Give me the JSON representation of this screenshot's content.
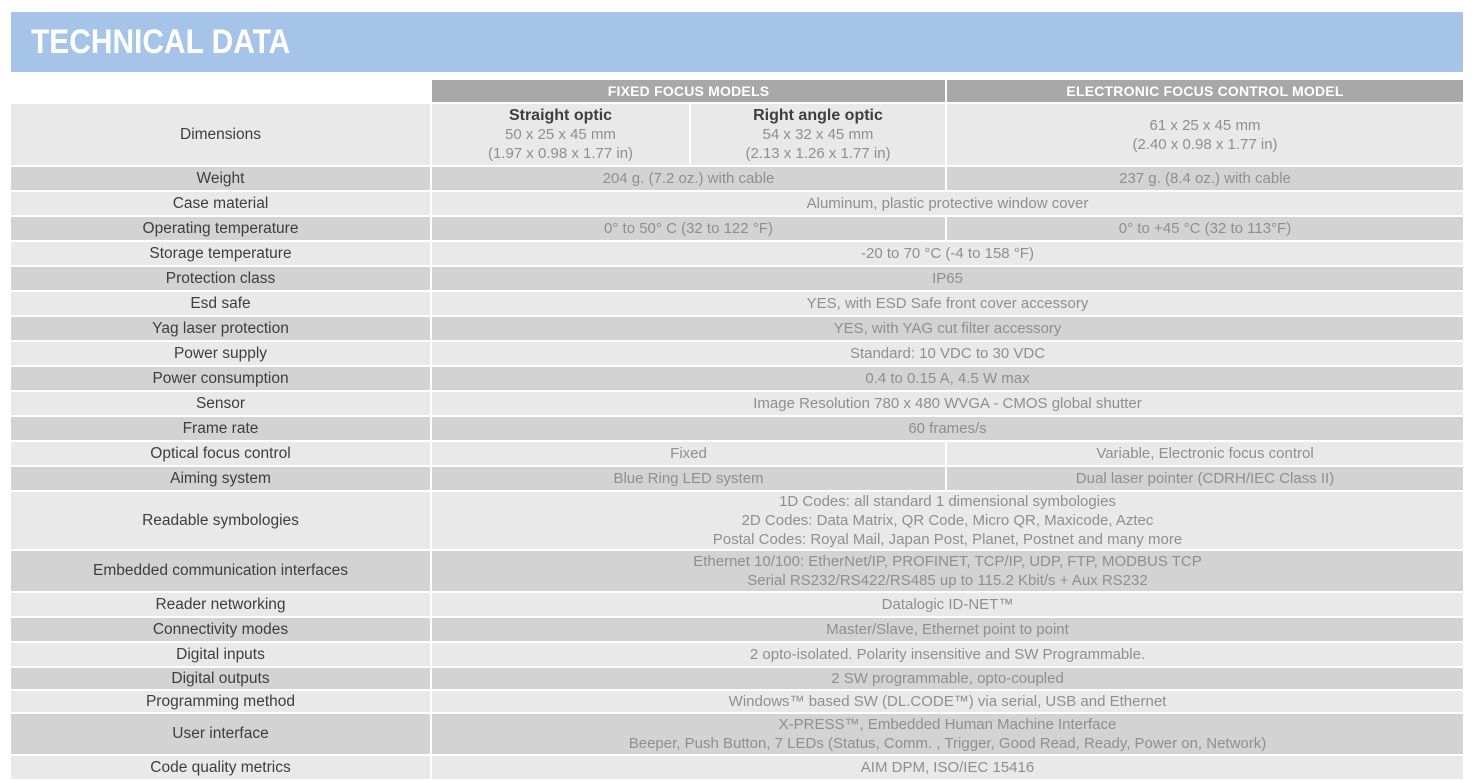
{
  "page_title": "TECHNICAL DATA",
  "colors": {
    "banner_blue": "#a6c4e8",
    "header_gray": "#a8a8a8",
    "row_light": "#e9e9e9",
    "row_dark": "#d3d3d3",
    "label_text": "#3e3e3e",
    "value_text": "#8f8f8f",
    "header_text": "#ffffff"
  },
  "table": {
    "headers": {
      "fixed": "FIXED FOCUS MODELS",
      "electronic": "ELECTRONIC FOCUS CONTROL MODEL"
    },
    "rows": {
      "dimensions": {
        "label": "Dimensions",
        "straight": {
          "name": "Straight optic",
          "mm": "50 x 25 x 45 mm",
          "inches": "(1.97 x 0.98 x 1.77 in)"
        },
        "right_angle": {
          "name": "Right angle optic",
          "mm": "54 x 32 x 45 mm",
          "inches": "(2.13 x 1.26 x 1.77 in)"
        },
        "electronic": {
          "mm": "61 x 25 x 45 mm",
          "inches": "(2.40 x 0.98 x 1.77 in)"
        }
      },
      "weight": {
        "label": "Weight",
        "fixed": "204 g. (7.2 oz.) with cable",
        "electronic": "237 g. (8.4 oz.) with cable"
      },
      "case_material": {
        "label": "Case material",
        "all": "Aluminum, plastic protective window cover"
      },
      "operating_temperature": {
        "label": "Operating temperature",
        "fixed": "0° to 50° C (32 to 122 °F)",
        "electronic": "0° to +45 °C (32 to 113°F)"
      },
      "storage_temperature": {
        "label": "Storage temperature",
        "all": "-20 to 70 °C (-4 to 158 °F)"
      },
      "protection_class": {
        "label": "Protection class",
        "all": "IP65"
      },
      "esd_safe": {
        "label": "Esd safe",
        "all": "YES, with ESD Safe front cover accessory"
      },
      "yag_laser_protection": {
        "label": "Yag laser protection",
        "all": "YES, with YAG cut filter accessory"
      },
      "power_supply": {
        "label": "Power supply",
        "all": "Standard: 10 VDC to 30 VDC"
      },
      "power_consumption": {
        "label": "Power consumption",
        "all": "0.4 to 0.15 A, 4.5 W max"
      },
      "sensor": {
        "label": "Sensor",
        "all": "Image Resolution 780 x 480 WVGA - CMOS global shutter"
      },
      "frame_rate": {
        "label": "Frame rate",
        "all": "60 frames/s"
      },
      "optical_focus_control": {
        "label": "Optical focus control",
        "fixed": "Fixed",
        "electronic": "Variable, Electronic focus control"
      },
      "aiming_system": {
        "label": "Aiming system",
        "fixed": "Blue Ring LED system",
        "electronic": "Dual laser pointer (CDRH/IEC Class II)"
      },
      "readable_symbologies": {
        "label": "Readable symbologies",
        "lines": [
          "1D Codes: all standard 1 dimensional symbologies",
          "2D Codes: Data Matrix, QR Code, Micro QR, Maxicode, Aztec",
          "Postal Codes: Royal Mail, Japan Post, Planet, Postnet and many more"
        ]
      },
      "embedded_communication_interfaces": {
        "label": "Embedded communication interfaces",
        "lines": [
          "Ethernet 10/100: EtherNet/IP, PROFINET, TCP/IP, UDP, FTP, MODBUS TCP",
          "Serial RS232/RS422/RS485 up to 115.2 Kbit/s + Aux RS232"
        ]
      },
      "reader_networking": {
        "label": "Reader networking",
        "all": "Datalogic ID-NET™"
      },
      "connectivity_modes": {
        "label": "Connectivity modes",
        "all": "Master/Slave, Ethernet point to point"
      },
      "digital_inputs": {
        "label": "Digital inputs",
        "all": "2 opto-isolated. Polarity insensitive and SW Programmable."
      },
      "digital_outputs": {
        "label": "Digital outputs",
        "all": "2 SW programmable, opto-coupled"
      },
      "programming_method": {
        "label": "Programming method",
        "all": "Windows™ based SW (DL.CODE™) via serial, USB and Ethernet"
      },
      "user_interface": {
        "label": "User interface",
        "lines": [
          "X-PRESS™, Embedded Human Machine Interface",
          "Beeper, Push Button, 7 LEDs (Status, Comm. , Trigger, Good Read, Ready, Power on, Network)"
        ]
      },
      "code_quality_metrics": {
        "label": "Code quality metrics",
        "all": "AIM DPM, ISO/IEC 15416"
      }
    }
  }
}
